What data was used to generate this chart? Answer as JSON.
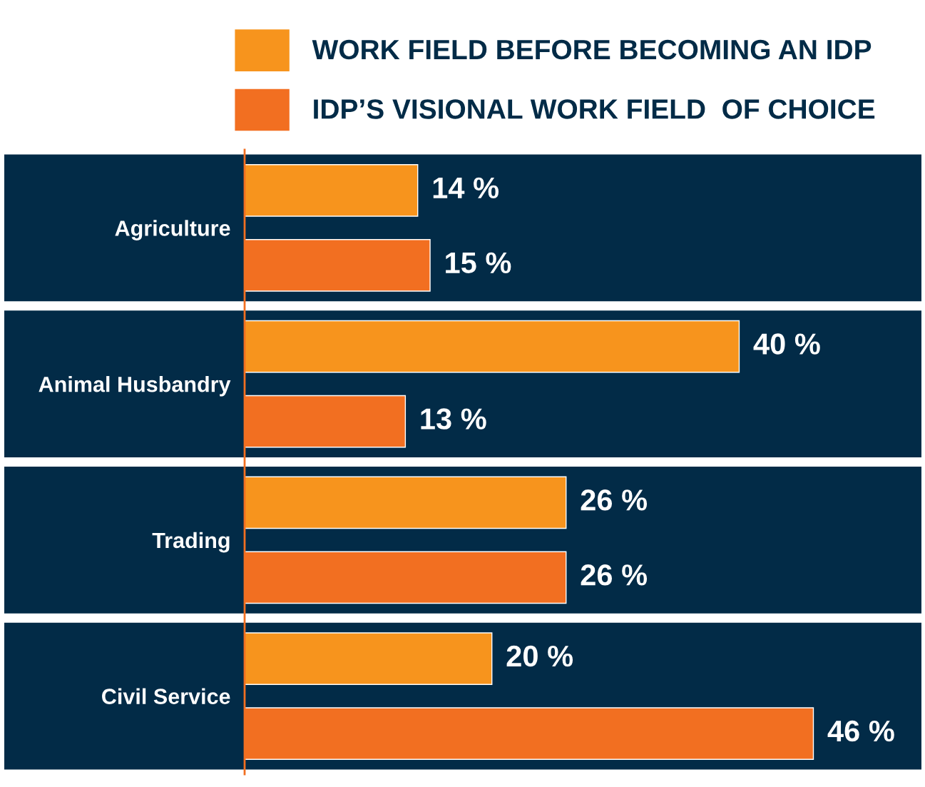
{
  "chart_data": {
    "type": "bar",
    "orientation": "horizontal",
    "categories": [
      "Agriculture",
      "Animal Husbandry",
      "Trading",
      "Civil Service"
    ],
    "series": [
      {
        "name": "WORK FIELD BEFORE BECOMING AN IDP",
        "color": "#f7941d",
        "values": [
          14,
          40,
          26,
          20
        ],
        "value_labels": [
          "14 %",
          "40 %",
          "26 %",
          "20 %"
        ]
      },
      {
        "name": "IDP’S VISIONAL WORK FIELD  OF CHOICE",
        "color": "#f26f21",
        "values": [
          15,
          13,
          26,
          46
        ],
        "value_labels": [
          "15 %",
          "13 %",
          "26 %",
          "46 %"
        ]
      }
    ],
    "tick_labels": "y",
    "grid": false,
    "legend": "top"
  }
}
